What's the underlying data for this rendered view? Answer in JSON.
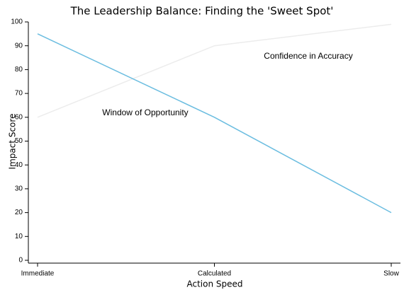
{
  "chart_data": {
    "type": "line",
    "title": "The Leadership Balance: Finding the 'Sweet Spot'",
    "x_label": "Action Speed",
    "y_label": "Impact Score",
    "categories": [
      "Immediate",
      "Calculated",
      "Slow"
    ],
    "series": [
      {
        "name": "Window of Opportunity",
        "color": "#6bbde0",
        "values": [
          95,
          60,
          20
        ]
      },
      {
        "name": "Confidence in Accuracy",
        "color": "#ececec",
        "values": [
          60,
          90,
          99
        ]
      }
    ],
    "ylim": [
      0,
      100
    ],
    "yticks": [
      0,
      10,
      20,
      30,
      40,
      50,
      60,
      70,
      80,
      90,
      100
    ],
    "grid": false
  }
}
